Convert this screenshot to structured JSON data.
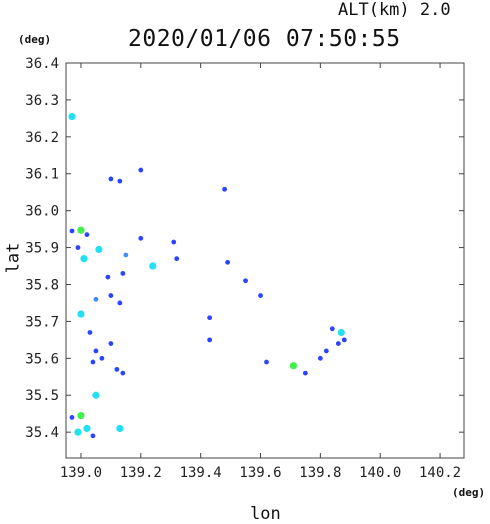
{
  "header": {
    "altitude_label": "ALT(km)  2.0",
    "timestamp": "2020/01/06 07:50:55"
  },
  "axes": {
    "y_unit": "(deg)",
    "x_unit": "(deg)",
    "x_label": "lon",
    "y_label": "lat"
  },
  "chart_data": {
    "type": "scatter",
    "xlim": [
      138.95,
      140.28
    ],
    "ylim": [
      35.33,
      36.4
    ],
    "x_ticks": [
      "139.0",
      "139.2",
      "139.4",
      "139.6",
      "139.8",
      "140.0",
      "140.2"
    ],
    "x_tick_values": [
      139.0,
      139.2,
      139.4,
      139.6,
      139.8,
      140.0,
      140.2
    ],
    "y_ticks": [
      "36.4",
      "36.3",
      "36.2",
      "36.1",
      "36.0",
      "35.9",
      "35.8",
      "35.7",
      "35.6",
      "35.5",
      "35.4"
    ],
    "y_tick_values": [
      36.4,
      36.3,
      36.2,
      36.1,
      36.0,
      35.9,
      35.8,
      35.7,
      35.6,
      35.5,
      35.4
    ],
    "grid": false,
    "colors": {
      "blue": "#2b45ff",
      "lightblue": "#3f8cff",
      "cyan": "#22e0f0",
      "green": "#3ef04a"
    },
    "echoes": [
      {
        "x": 138.97,
        "y": 36.255,
        "c": "cyan"
      },
      {
        "x": 139.1,
        "y": 36.086,
        "c": "blue"
      },
      {
        "x": 139.2,
        "y": 36.11,
        "c": "blue"
      },
      {
        "x": 139.13,
        "y": 36.08,
        "c": "blue"
      },
      {
        "x": 139.48,
        "y": 36.058,
        "c": "blue"
      },
      {
        "x": 138.97,
        "y": 35.945,
        "c": "blue"
      },
      {
        "x": 139.0,
        "y": 35.947,
        "c": "green"
      },
      {
        "x": 139.02,
        "y": 35.935,
        "c": "blue"
      },
      {
        "x": 138.99,
        "y": 35.9,
        "c": "blue"
      },
      {
        "x": 139.06,
        "y": 35.895,
        "c": "cyan"
      },
      {
        "x": 139.01,
        "y": 35.87,
        "c": "cyan"
      },
      {
        "x": 139.15,
        "y": 35.88,
        "c": "lightblue"
      },
      {
        "x": 139.2,
        "y": 35.925,
        "c": "blue"
      },
      {
        "x": 139.31,
        "y": 35.915,
        "c": "blue"
      },
      {
        "x": 139.32,
        "y": 35.87,
        "c": "blue"
      },
      {
        "x": 139.24,
        "y": 35.85,
        "c": "cyan"
      },
      {
        "x": 139.14,
        "y": 35.83,
        "c": "blue"
      },
      {
        "x": 139.09,
        "y": 35.82,
        "c": "blue"
      },
      {
        "x": 139.1,
        "y": 35.77,
        "c": "blue"
      },
      {
        "x": 139.05,
        "y": 35.76,
        "c": "lightblue"
      },
      {
        "x": 139.13,
        "y": 35.75,
        "c": "blue"
      },
      {
        "x": 139.0,
        "y": 35.72,
        "c": "cyan"
      },
      {
        "x": 139.03,
        "y": 35.67,
        "c": "blue"
      },
      {
        "x": 139.05,
        "y": 35.62,
        "c": "blue"
      },
      {
        "x": 139.1,
        "y": 35.64,
        "c": "blue"
      },
      {
        "x": 139.04,
        "y": 35.59,
        "c": "blue"
      },
      {
        "x": 139.07,
        "y": 35.6,
        "c": "blue"
      },
      {
        "x": 139.12,
        "y": 35.57,
        "c": "blue"
      },
      {
        "x": 139.14,
        "y": 35.56,
        "c": "blue"
      },
      {
        "x": 139.05,
        "y": 35.5,
        "c": "cyan"
      },
      {
        "x": 138.97,
        "y": 35.44,
        "c": "blue"
      },
      {
        "x": 139.0,
        "y": 35.445,
        "c": "green"
      },
      {
        "x": 139.02,
        "y": 35.41,
        "c": "cyan"
      },
      {
        "x": 138.99,
        "y": 35.4,
        "c": "cyan"
      },
      {
        "x": 139.04,
        "y": 35.39,
        "c": "blue"
      },
      {
        "x": 139.13,
        "y": 35.41,
        "c": "cyan"
      },
      {
        "x": 139.43,
        "y": 35.71,
        "c": "blue"
      },
      {
        "x": 139.43,
        "y": 35.65,
        "c": "blue"
      },
      {
        "x": 139.49,
        "y": 35.86,
        "c": "blue"
      },
      {
        "x": 139.55,
        "y": 35.81,
        "c": "blue"
      },
      {
        "x": 139.6,
        "y": 35.77,
        "c": "blue"
      },
      {
        "x": 139.62,
        "y": 35.59,
        "c": "blue"
      },
      {
        "x": 139.71,
        "y": 35.58,
        "c": "green"
      },
      {
        "x": 139.75,
        "y": 35.56,
        "c": "blue"
      },
      {
        "x": 139.8,
        "y": 35.6,
        "c": "blue"
      },
      {
        "x": 139.82,
        "y": 35.62,
        "c": "blue"
      },
      {
        "x": 139.84,
        "y": 35.68,
        "c": "blue"
      },
      {
        "x": 139.86,
        "y": 35.64,
        "c": "blue"
      },
      {
        "x": 139.87,
        "y": 35.67,
        "c": "cyan"
      },
      {
        "x": 139.88,
        "y": 35.65,
        "c": "blue"
      }
    ]
  }
}
